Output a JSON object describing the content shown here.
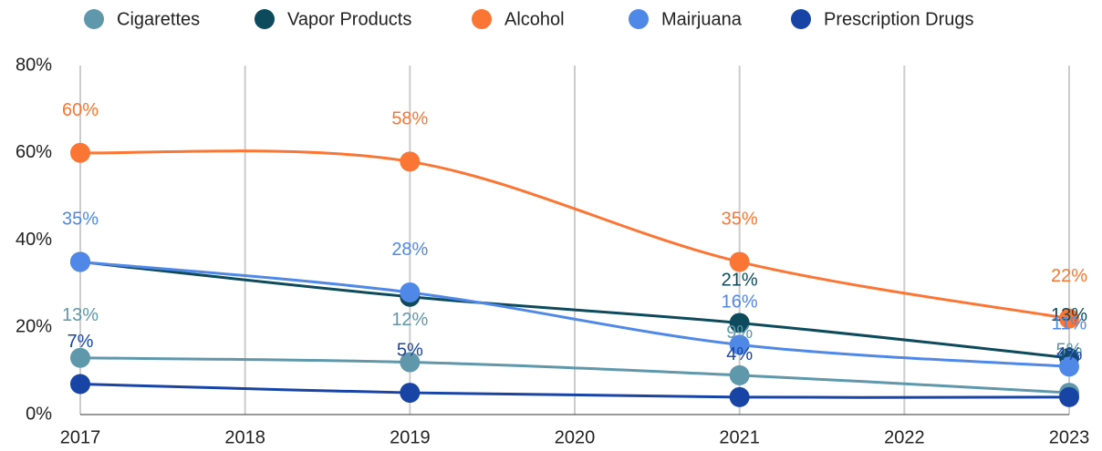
{
  "chart_data": {
    "type": "line",
    "x": [
      2017,
      2019,
      2021,
      2023
    ],
    "xlim": [
      2017,
      2023
    ],
    "xticks": [
      2017,
      2018,
      2019,
      2020,
      2021,
      2022,
      2023
    ],
    "ylim": [
      0,
      80
    ],
    "yticks": [
      {
        "value": 0,
        "label": "0%"
      },
      {
        "value": 20,
        "label": "20%"
      },
      {
        "value": 40,
        "label": "40%"
      },
      {
        "value": 60,
        "label": "60%"
      },
      {
        "value": 80,
        "label": "80%"
      }
    ],
    "grid": true,
    "legend": "top",
    "series": [
      {
        "name": "Cigarettes",
        "color": "#5f97ab",
        "values": [
          13,
          12,
          9,
          5
        ],
        "value_labels": [
          "13%",
          "12%",
          "9%",
          "5%"
        ]
      },
      {
        "name": "Vapor Products",
        "color": "#0c4a5c",
        "values": [
          35,
          27,
          21,
          13
        ],
        "value_labels": [
          null,
          null,
          "21%",
          "13%"
        ]
      },
      {
        "name": "Alcohol",
        "color": "#fb7634",
        "values": [
          60,
          58,
          35,
          22
        ],
        "value_labels": [
          "60%",
          "58%",
          "35%",
          "22%"
        ]
      },
      {
        "name": "Mairjuana",
        "color": "#5088e8",
        "values": [
          35,
          28,
          16,
          11
        ],
        "value_labels": [
          "35%",
          "28%",
          "16%",
          "11%"
        ]
      },
      {
        "name": "Prescription Drugs",
        "color": "#1844a6",
        "values": [
          7,
          5,
          4,
          4
        ],
        "value_labels": [
          "7%",
          "5%",
          "4%",
          "4%"
        ]
      }
    ]
  }
}
